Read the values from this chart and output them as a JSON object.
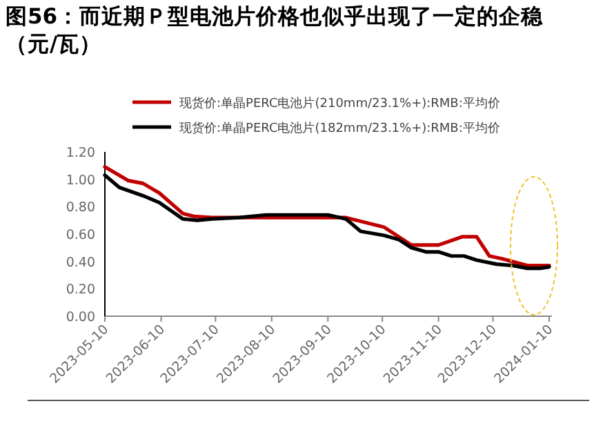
{
  "chart_data": {
    "type": "line",
    "title": "图56：而近期Ｐ型电池片价格也似乎出现了一定的企稳（元/瓦）",
    "xlim": [
      "2023-05-10",
      "2024-01-10"
    ],
    "xticks": [
      "2023-05-10",
      "2023-06-10",
      "2023-07-10",
      "2023-08-10",
      "2023-09-10",
      "2023-10-10",
      "2023-11-10",
      "2023-12-10",
      "2024-01-10"
    ],
    "ylim": [
      0,
      1.2
    ],
    "yticks": [
      {
        "value": 0,
        "label": "0.00"
      },
      {
        "value": 0.2,
        "label": "0.20"
      },
      {
        "value": 0.4,
        "label": "0.40"
      },
      {
        "value": 0.6,
        "label": "0.60"
      },
      {
        "value": 0.8,
        "label": "0.80"
      },
      {
        "value": 1.0,
        "label": "1.00"
      },
      {
        "value": 1.2,
        "label": "1.20"
      }
    ],
    "grid": false,
    "legend": "top",
    "marker": "none",
    "line_style": "solid",
    "series": [
      {
        "name": "现货价:单晶PERC电池片(210mm/23.1%+):RMB:平均价",
        "color": "#c00000",
        "x": [
          "2023-05-10",
          "2023-05-23",
          "2023-05-31",
          "2023-06-09",
          "2023-06-22",
          "2023-06-28",
          "2023-07-08",
          "2023-07-28",
          "2023-09-20",
          "2023-10-11",
          "2023-10-26",
          "2023-11-10",
          "2023-11-23",
          "2023-12-01",
          "2023-12-08",
          "2023-12-15",
          "2023-12-29",
          "2024-01-10"
        ],
        "values": [
          1.09,
          0.99,
          0.97,
          0.9,
          0.75,
          0.73,
          0.72,
          0.72,
          0.72,
          0.65,
          0.52,
          0.52,
          0.58,
          0.58,
          0.44,
          0.42,
          0.37,
          0.37
        ]
      },
      {
        "name": "现货价:单晶PERC电池片(182mm/23.1%+):RMB:平均价",
        "color": "#000000",
        "x": [
          "2023-05-10",
          "2023-05-18",
          "2023-05-31",
          "2023-06-09",
          "2023-06-22",
          "2023-06-30",
          "2023-07-08",
          "2023-07-23",
          "2023-08-07",
          "2023-09-10",
          "2023-09-20",
          "2023-09-28",
          "2023-10-11",
          "2023-10-19",
          "2023-10-26",
          "2023-11-03",
          "2023-11-10",
          "2023-11-17",
          "2023-11-24",
          "2023-12-01",
          "2023-12-12",
          "2023-12-21",
          "2023-12-29",
          "2024-01-05",
          "2024-01-10"
        ],
        "values": [
          1.03,
          0.94,
          0.88,
          0.83,
          0.71,
          0.7,
          0.71,
          0.72,
          0.74,
          0.74,
          0.71,
          0.62,
          0.59,
          0.56,
          0.5,
          0.47,
          0.47,
          0.44,
          0.44,
          0.41,
          0.38,
          0.37,
          0.35,
          0.35,
          0.36
        ]
      }
    ]
  }
}
